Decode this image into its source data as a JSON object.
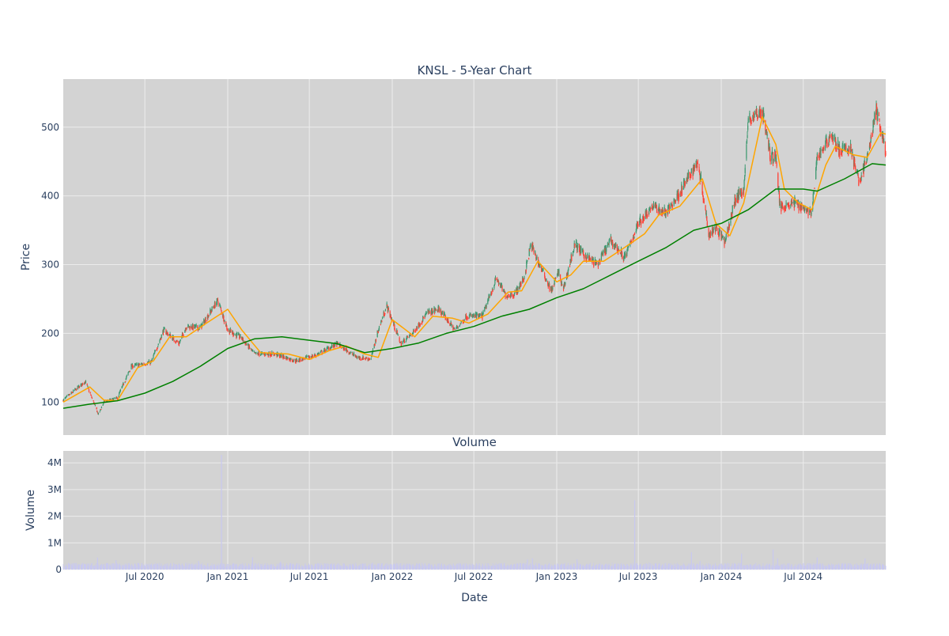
{
  "colors": {
    "plot_bg": "#d3d3d3",
    "grid": "#ececec",
    "up": "#3d9970",
    "down": "#ff4136",
    "ma_short": "#ffa500",
    "ma_long": "#008000",
    "volume_bar": "#c8c8f0",
    "text": "#2a3f5f"
  },
  "chart_data": [
    {
      "type": "candlestick",
      "title": "KNSL - 5-Year Chart",
      "ylabel": "Price",
      "ylim": [
        52,
        570
      ],
      "yticks": [
        100,
        200,
        300,
        400,
        500
      ],
      "ytick_labels": [
        "100",
        "200",
        "300",
        "400",
        "500"
      ],
      "x_range": [
        "2020-01-02",
        "2024-12-31"
      ],
      "x_ticks": [
        "2020-07-01",
        "2021-01-01",
        "2021-07-01",
        "2022-01-01",
        "2022-07-01",
        "2023-01-01",
        "2023-07-01",
        "2024-01-01",
        "2024-07-01"
      ],
      "grid": true,
      "price_path": [
        [
          "2020-01-02",
          103
        ],
        [
          "2020-02-20",
          130
        ],
        [
          "2020-03-20",
          82
        ],
        [
          "2020-04-01",
          100
        ],
        [
          "2020-05-01",
          106
        ],
        [
          "2020-06-01",
          152
        ],
        [
          "2020-07-15",
          158
        ],
        [
          "2020-08-12",
          205
        ],
        [
          "2020-09-15",
          185
        ],
        [
          "2020-10-01",
          210
        ],
        [
          "2020-11-01",
          208
        ],
        [
          "2020-12-10",
          248
        ],
        [
          "2021-01-01",
          205
        ],
        [
          "2021-02-01",
          193
        ],
        [
          "2021-03-01",
          170
        ],
        [
          "2021-04-15",
          170
        ],
        [
          "2021-06-01",
          160
        ],
        [
          "2021-07-15",
          168
        ],
        [
          "2021-09-01",
          185
        ],
        [
          "2021-10-15",
          165
        ],
        [
          "2021-11-15",
          163
        ],
        [
          "2021-12-01",
          205
        ],
        [
          "2021-12-20",
          240
        ],
        [
          "2022-01-20",
          185
        ],
        [
          "2022-02-15",
          200
        ],
        [
          "2022-03-20",
          230
        ],
        [
          "2022-04-15",
          235
        ],
        [
          "2022-05-20",
          205
        ],
        [
          "2022-06-15",
          225
        ],
        [
          "2022-07-20",
          225
        ],
        [
          "2022-08-20",
          280
        ],
        [
          "2022-09-10",
          255
        ],
        [
          "2022-10-01",
          258
        ],
        [
          "2022-10-20",
          280
        ],
        [
          "2022-11-05",
          330
        ],
        [
          "2022-11-20",
          305
        ],
        [
          "2022-12-20",
          262
        ],
        [
          "2023-01-05",
          290
        ],
        [
          "2023-01-15",
          262
        ],
        [
          "2023-02-10",
          330
        ],
        [
          "2023-03-01",
          315
        ],
        [
          "2023-04-01",
          300
        ],
        [
          "2023-05-01",
          335
        ],
        [
          "2023-06-01",
          310
        ],
        [
          "2023-07-01",
          360
        ],
        [
          "2023-08-01",
          385
        ],
        [
          "2023-09-01",
          375
        ],
        [
          "2023-10-01",
          405
        ],
        [
          "2023-11-10",
          450
        ],
        [
          "2023-11-20",
          410
        ],
        [
          "2023-12-05",
          345
        ],
        [
          "2023-12-20",
          355
        ],
        [
          "2024-01-10",
          332
        ],
        [
          "2024-02-01",
          395
        ],
        [
          "2024-02-20",
          410
        ],
        [
          "2024-03-01",
          510
        ],
        [
          "2024-04-01",
          525
        ],
        [
          "2024-04-20",
          455
        ],
        [
          "2024-05-01",
          460
        ],
        [
          "2024-05-10",
          385
        ],
        [
          "2024-06-15",
          390
        ],
        [
          "2024-07-20",
          375
        ],
        [
          "2024-08-01",
          455
        ],
        [
          "2024-09-01",
          490
        ],
        [
          "2024-09-20",
          465
        ],
        [
          "2024-10-15",
          470
        ],
        [
          "2024-11-01",
          420
        ],
        [
          "2024-11-20",
          455
        ],
        [
          "2024-12-10",
          525
        ],
        [
          "2024-12-31",
          465
        ]
      ],
      "series": [
        {
          "type": "line",
          "color": "#ffa500",
          "points": [
            [
              "2020-01-02",
              100
            ],
            [
              "2020-03-01",
              122
            ],
            [
              "2020-04-01",
              103
            ],
            [
              "2020-05-01",
              102
            ],
            [
              "2020-06-15",
              150
            ],
            [
              "2020-07-20",
              160
            ],
            [
              "2020-08-25",
              195
            ],
            [
              "2020-10-01",
              195
            ],
            [
              "2020-11-15",
              215
            ],
            [
              "2021-01-01",
              235
            ],
            [
              "2021-02-01",
              205
            ],
            [
              "2021-03-15",
              172
            ],
            [
              "2021-05-15",
              170
            ],
            [
              "2021-07-01",
              162
            ],
            [
              "2021-08-15",
              175
            ],
            [
              "2021-09-20",
              182
            ],
            [
              "2021-11-01",
              170
            ],
            [
              "2021-12-01",
              165
            ],
            [
              "2022-01-01",
              220
            ],
            [
              "2022-02-20",
              195
            ],
            [
              "2022-04-01",
              225
            ],
            [
              "2022-05-15",
              222
            ],
            [
              "2022-06-20",
              215
            ],
            [
              "2022-08-01",
              228
            ],
            [
              "2022-09-15",
              260
            ],
            [
              "2022-10-15",
              262
            ],
            [
              "2022-11-20",
              305
            ],
            [
              "2023-01-01",
              275
            ],
            [
              "2023-02-01",
              285
            ],
            [
              "2023-03-01",
              305
            ],
            [
              "2023-04-15",
              305
            ],
            [
              "2023-06-01",
              325
            ],
            [
              "2023-07-15",
              345
            ],
            [
              "2023-08-15",
              372
            ],
            [
              "2023-10-01",
              385
            ],
            [
              "2023-11-20",
              425
            ],
            [
              "2023-12-20",
              360
            ],
            [
              "2024-01-20",
              342
            ],
            [
              "2024-02-20",
              390
            ],
            [
              "2024-04-01",
              515
            ],
            [
              "2024-05-01",
              475
            ],
            [
              "2024-05-20",
              410
            ],
            [
              "2024-06-20",
              390
            ],
            [
              "2024-07-20",
              380
            ],
            [
              "2024-08-20",
              445
            ],
            [
              "2024-09-10",
              472
            ],
            [
              "2024-10-20",
              460
            ],
            [
              "2024-11-20",
              456
            ],
            [
              "2024-12-20",
              492
            ],
            [
              "2024-12-31",
              490
            ]
          ]
        },
        {
          "type": "line",
          "color": "#008000",
          "points": [
            [
              "2020-01-02",
              91
            ],
            [
              "2020-03-01",
              97
            ],
            [
              "2020-05-01",
              102
            ],
            [
              "2020-07-01",
              113
            ],
            [
              "2020-09-01",
              130
            ],
            [
              "2020-11-01",
              152
            ],
            [
              "2021-01-01",
              178
            ],
            [
              "2021-03-01",
              192
            ],
            [
              "2021-05-01",
              195
            ],
            [
              "2021-07-01",
              190
            ],
            [
              "2021-09-01",
              185
            ],
            [
              "2021-11-01",
              172
            ],
            [
              "2022-01-01",
              178
            ],
            [
              "2022-03-01",
              186
            ],
            [
              "2022-05-01",
              200
            ],
            [
              "2022-07-01",
              210
            ],
            [
              "2022-09-01",
              225
            ],
            [
              "2022-11-01",
              235
            ],
            [
              "2023-01-01",
              252
            ],
            [
              "2023-03-01",
              265
            ],
            [
              "2023-05-01",
              285
            ],
            [
              "2023-07-01",
              305
            ],
            [
              "2023-09-01",
              325
            ],
            [
              "2023-11-01",
              350
            ],
            [
              "2024-01-01",
              360
            ],
            [
              "2024-03-01",
              380
            ],
            [
              "2024-05-01",
              410
            ],
            [
              "2024-07-01",
              410
            ],
            [
              "2024-08-01",
              407
            ],
            [
              "2024-10-01",
              425
            ],
            [
              "2024-12-01",
              447
            ],
            [
              "2024-12-31",
              445
            ]
          ]
        }
      ]
    },
    {
      "type": "bar",
      "title": "Volume",
      "xlabel": "Date",
      "ylabel": "Volume",
      "ylim": [
        0,
        4450000
      ],
      "yticks": [
        0,
        1000000,
        2000000,
        3000000,
        4000000
      ],
      "ytick_labels": [
        "0",
        "1M",
        "2M",
        "3M",
        "4M"
      ],
      "x_range": [
        "2020-01-02",
        "2024-12-31"
      ],
      "x_ticks": [
        "2020-07-01",
        "2021-01-01",
        "2021-07-01",
        "2022-01-01",
        "2022-07-01",
        "2023-01-01",
        "2023-07-01",
        "2024-01-01",
        "2024-07-01"
      ],
      "x_tick_labels": [
        "Jul 2020",
        "Jan 2021",
        "Jul 2021",
        "Jan 2022",
        "Jul 2022",
        "Jan 2023",
        "Jul 2023",
        "Jan 2024",
        "Jul 2024"
      ],
      "baseline": 170000,
      "spikes": [
        [
          "2020-03-18",
          450000
        ],
        [
          "2020-04-28",
          350000
        ],
        [
          "2020-10-28",
          320000
        ],
        [
          "2020-12-18",
          4300000
        ],
        [
          "2021-02-25",
          460000
        ],
        [
          "2021-04-28",
          300000
        ],
        [
          "2022-10-28",
          380000
        ],
        [
          "2022-11-08",
          420000
        ],
        [
          "2023-02-15",
          380000
        ],
        [
          "2023-06-23",
          2600000
        ],
        [
          "2023-10-27",
          650000
        ],
        [
          "2023-11-15",
          320000
        ],
        [
          "2024-02-15",
          600000
        ],
        [
          "2024-04-25",
          750000
        ],
        [
          "2024-05-05",
          420000
        ],
        [
          "2024-08-01",
          450000
        ],
        [
          "2024-11-15",
          420000
        ]
      ]
    }
  ]
}
